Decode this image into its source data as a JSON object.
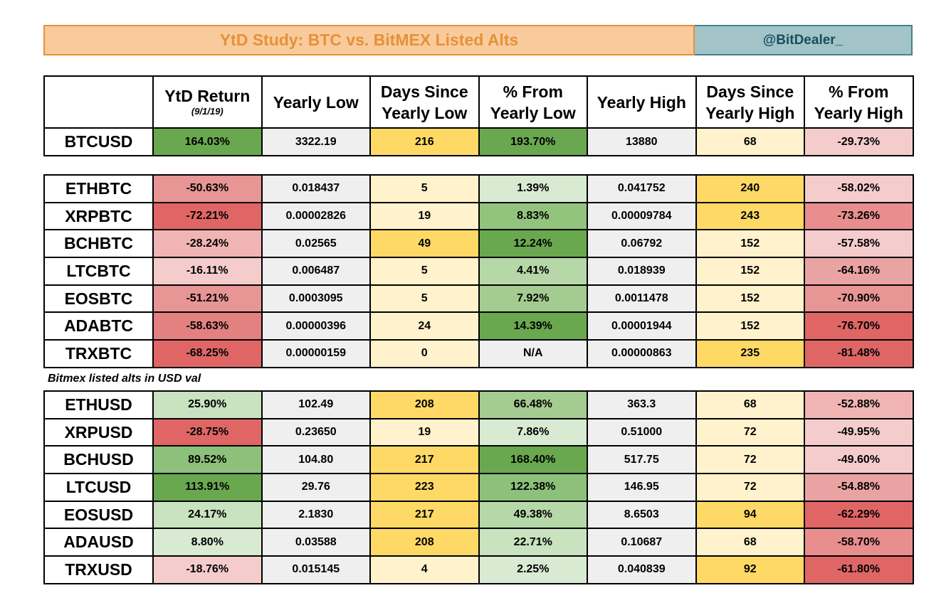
{
  "title": "YtD Study: BTC vs. BitMEX Listed Alts",
  "handle": "@BitDealer_",
  "header": {
    "blank": "",
    "ytd_return": "YtD Return",
    "ytd_date": "(9/1/19)",
    "yearly_low": "Yearly Low",
    "days_since_low": "Days Since Yearly Low",
    "pct_from_low": "% From Yearly Low",
    "yearly_high": "Yearly High",
    "days_since_high": "Days Since Yearly High",
    "pct_from_high": "% From Yearly High"
  },
  "btc": {
    "cells": [
      "BTCUSD",
      "164.03%",
      "3322.19",
      "216",
      "193.70%",
      "13880",
      "68",
      "-29.73%"
    ],
    "colors": [
      "#ffffff",
      "#6aa84f",
      "#efefef",
      "#ffd966",
      "#6aa84f",
      "#efefef",
      "#fff2cc",
      "#f4cccc"
    ]
  },
  "btc_pairs": [
    {
      "cells": [
        "ETHBTC",
        "-50.63%",
        "0.018437",
        "5",
        "1.39%",
        "0.041752",
        "240",
        "-58.02%"
      ],
      "colors": [
        "#ffffff",
        "#e89595",
        "#efefef",
        "#fff2cc",
        "#d9ead3",
        "#efefef",
        "#ffd966",
        "#f4cccc"
      ]
    },
    {
      "cells": [
        "XRPBTC",
        "-72.21%",
        "0.00002826",
        "19",
        "8.83%",
        "0.00009784",
        "243",
        "-73.26%"
      ],
      "colors": [
        "#ffffff",
        "#e06666",
        "#efefef",
        "#fff2cc",
        "#93c47d",
        "#efefef",
        "#ffd966",
        "#e88e8e"
      ]
    },
    {
      "cells": [
        "BCHBTC",
        "-28.24%",
        "0.02565",
        "49",
        "12.24%",
        "0.06792",
        "152",
        "-57.58%"
      ],
      "colors": [
        "#ffffff",
        "#f0b4b4",
        "#efefef",
        "#ffd966",
        "#6aa84f",
        "#efefef",
        "#fff2cc",
        "#f4cccc"
      ]
    },
    {
      "cells": [
        "LTCBTC",
        "-16.11%",
        "0.006487",
        "5",
        "4.41%",
        "0.018939",
        "152",
        "-64.16%"
      ],
      "colors": [
        "#ffffff",
        "#f4cccc",
        "#efefef",
        "#fff2cc",
        "#b6d7a8",
        "#efefef",
        "#fff2cc",
        "#eaa3a3"
      ]
    },
    {
      "cells": [
        "EOSBTC",
        "-51.21%",
        "0.0003095",
        "5",
        "7.92%",
        "0.0011478",
        "152",
        "-70.90%"
      ],
      "colors": [
        "#ffffff",
        "#e89595",
        "#efefef",
        "#fff2cc",
        "#a4cc91",
        "#efefef",
        "#fff2cc",
        "#e89595"
      ]
    },
    {
      "cells": [
        "ADABTC",
        "-58.63%",
        "0.00000396",
        "24",
        "14.39%",
        "0.00001944",
        "152",
        "-76.70%"
      ],
      "colors": [
        "#ffffff",
        "#e38080",
        "#efefef",
        "#fff2cc",
        "#6aa84f",
        "#efefef",
        "#fff2cc",
        "#e06666"
      ]
    },
    {
      "cells": [
        "TRXBTC",
        "-68.25%",
        "0.00000159",
        "0",
        "N/A",
        "0.00000863",
        "235",
        "-81.48%"
      ],
      "colors": [
        "#ffffff",
        "#e06666",
        "#efefef",
        "#fff2cc",
        "#efefef",
        "#efefef",
        "#ffd966",
        "#e06666"
      ]
    }
  ],
  "note": "Bitmex listed alts in USD val",
  "usd_pairs": [
    {
      "cells": [
        "ETHUSD",
        "25.90%",
        "102.49",
        "208",
        "66.48%",
        "363.3",
        "68",
        "-52.88%"
      ],
      "colors": [
        "#ffffff",
        "#c9e2bf",
        "#efefef",
        "#ffd966",
        "#a4cc91",
        "#efefef",
        "#fff2cc",
        "#f0b4b4"
      ]
    },
    {
      "cells": [
        "XRPUSD",
        "-28.75%",
        "0.23650",
        "19",
        "7.86%",
        "0.51000",
        "72",
        "-49.95%"
      ],
      "colors": [
        "#ffffff",
        "#e06666",
        "#efefef",
        "#fff2cc",
        "#d9ead3",
        "#efefef",
        "#fff2cc",
        "#f4cccc"
      ]
    },
    {
      "cells": [
        "BCHUSD",
        "89.52%",
        "104.80",
        "217",
        "168.40%",
        "517.75",
        "72",
        "-49.60%"
      ],
      "colors": [
        "#ffffff",
        "#8dc07a",
        "#efefef",
        "#ffd966",
        "#6aa84f",
        "#efefef",
        "#fff2cc",
        "#f4cccc"
      ]
    },
    {
      "cells": [
        "LTCUSD",
        "113.91%",
        "29.76",
        "223",
        "122.38%",
        "146.95",
        "72",
        "-54.88%"
      ],
      "colors": [
        "#ffffff",
        "#6aa84f",
        "#efefef",
        "#ffd966",
        "#8dc07a",
        "#efefef",
        "#fff2cc",
        "#eaa3a3"
      ]
    },
    {
      "cells": [
        "EOSUSD",
        "24.17%",
        "2.1830",
        "217",
        "49.38%",
        "8.6503",
        "94",
        "-62.29%"
      ],
      "colors": [
        "#ffffff",
        "#c9e2bf",
        "#efefef",
        "#ffd966",
        "#b6d7a8",
        "#efefef",
        "#ffd966",
        "#e06666"
      ]
    },
    {
      "cells": [
        "ADAUSD",
        "8.80%",
        "0.03588",
        "208",
        "22.71%",
        "0.10687",
        "68",
        "-58.70%"
      ],
      "colors": [
        "#ffffff",
        "#d9ead3",
        "#efefef",
        "#ffd966",
        "#c9e2bf",
        "#efefef",
        "#fff2cc",
        "#e88e8e"
      ]
    },
    {
      "cells": [
        "TRXUSD",
        "-18.76%",
        "0.015145",
        "4",
        "2.25%",
        "0.040839",
        "92",
        "-61.80%"
      ],
      "colors": [
        "#ffffff",
        "#f4cccc",
        "#efefef",
        "#fff2cc",
        "#d9ead3",
        "#efefef",
        "#ffd966",
        "#e06666"
      ]
    }
  ]
}
